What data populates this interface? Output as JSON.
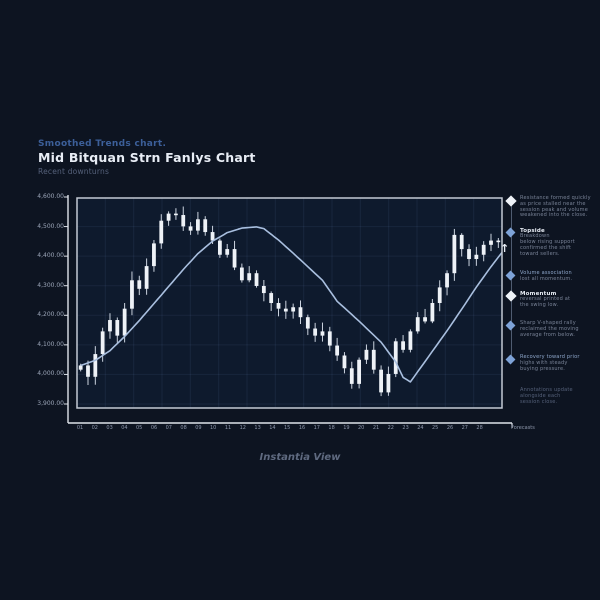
{
  "header": {
    "kicker": "Smoothed Trends chart.",
    "title": "Mid Bitquan Strn Fanlys Chart",
    "subtitle": "Recent downturns"
  },
  "footer": {
    "caption": "Instantia View"
  },
  "colors": {
    "background": "#0d1421",
    "plot_fill": "#0e1a2d",
    "grid": "rgba(120,150,210,0.10)",
    "frame": "#c3cad4",
    "axis": "#dfe3ea",
    "candle": "#eef2f7",
    "wick": "#ccd4e0",
    "ma_line": "#a9bfdf",
    "kicker_blue": "#3c5f99",
    "text_bright": "#e8edf5",
    "text_gray": "#7a8498",
    "text_dim": "#55617a",
    "tick_text": "#9ba5b8",
    "xtick_text": "#8d97ab",
    "caption_text": "#5f6a80",
    "diamond_blue": "#7ea3d8",
    "diamond_white": "#eef2f7",
    "tint_blue": "#8fa8cc"
  },
  "chart_data": {
    "type": "candlestick",
    "title": "Mid Bitquan Strn Fanlys Chart",
    "xlabel": "",
    "ylabel": "",
    "ylim": [
      3880,
      4620
    ],
    "grid": true,
    "legend_position": "right",
    "y_ticks": [
      "4,600.00",
      "4,500.00",
      "4,400.00",
      "4,300.00",
      "4,200.00",
      "4,100.00",
      "4,000.00",
      "3,900.00"
    ],
    "x_ticks": [
      "01",
      "02",
      "03",
      "04",
      "05",
      "06",
      "07",
      "08",
      "09",
      "10",
      "11",
      "12",
      "13",
      "14",
      "15",
      "16",
      "17",
      "18",
      "19",
      "20",
      "21",
      "22",
      "23",
      "24",
      "25",
      "26",
      "27",
      "28",
      "Forecasts"
    ],
    "series": [
      {
        "name": "price-candles",
        "type": "candlestick",
        "close": [
          4030,
          3990,
          4070,
          4150,
          4190,
          4135,
          4230,
          4330,
          4300,
          4380,
          4460,
          4540,
          4565,
          4560,
          4520,
          4505,
          4545,
          4500,
          4470,
          4420,
          4440,
          4375,
          4330,
          4355,
          4310,
          4285,
          4250,
          4230,
          4220,
          4235,
          4200,
          4160,
          4135,
          4150,
          4100,
          4065,
          4020,
          3965,
          4050,
          4085,
          4015,
          3935,
          4000,
          4115,
          4085,
          4150,
          4200,
          4185,
          4250,
          4305,
          4355,
          4490,
          4440,
          4405,
          4420,
          4455,
          4470,
          4465
        ]
      },
      {
        "name": "moving-average",
        "type": "line",
        "keypoints": [
          [
            0,
            4030
          ],
          [
            2,
            4048
          ],
          [
            4,
            4082
          ],
          [
            6,
            4132
          ],
          [
            8,
            4188
          ],
          [
            10,
            4248
          ],
          [
            12,
            4308
          ],
          [
            14,
            4368
          ],
          [
            16,
            4424
          ],
          [
            18,
            4468
          ],
          [
            20,
            4498
          ],
          [
            22,
            4514
          ],
          [
            24,
            4518
          ],
          [
            25,
            4512
          ],
          [
            27,
            4472
          ],
          [
            30,
            4402
          ],
          [
            33,
            4330
          ],
          [
            35,
            4256
          ],
          [
            38,
            4186
          ],
          [
            41,
            4112
          ],
          [
            43,
            4042
          ],
          [
            44,
            3988
          ],
          [
            45,
            3972
          ],
          [
            46,
            4008
          ],
          [
            48,
            4080
          ],
          [
            50,
            4152
          ],
          [
            52,
            4228
          ],
          [
            54,
            4306
          ],
          [
            56,
            4378
          ],
          [
            57.5,
            4428
          ]
        ]
      }
    ]
  },
  "annotations": {
    "entries": [
      {
        "marker": "white",
        "title": "",
        "lines": [
          "Resistance formed quickly",
          "as price stalled near the",
          "session peak and volume",
          "weakened into the close."
        ]
      },
      {
        "marker": "blue",
        "title": "Topside",
        "lines": [
          "Breakdown",
          "below rising support",
          "confirmed the shift",
          "toward sellers."
        ]
      },
      {
        "marker": "blue",
        "title": "",
        "tint": true,
        "lines": [
          "Volume association",
          "lost all momentum."
        ]
      },
      {
        "marker": "white",
        "title": "Momentum",
        "lines": [
          "reversal printed at",
          "the swing low."
        ]
      },
      {
        "marker": "blue",
        "title": "",
        "lines": [
          "Sharp V-shaped rally",
          "reclaimed the moving",
          "average from below."
        ]
      },
      {
        "marker": "blue",
        "title": "",
        "tint": true,
        "lines": [
          "Recovery toward prior",
          "highs with steady",
          "buying pressure."
        ]
      },
      {
        "marker": null,
        "title": "",
        "dim": true,
        "lines": [
          "Annotations update",
          "alongside each",
          "session close."
        ]
      }
    ]
  }
}
